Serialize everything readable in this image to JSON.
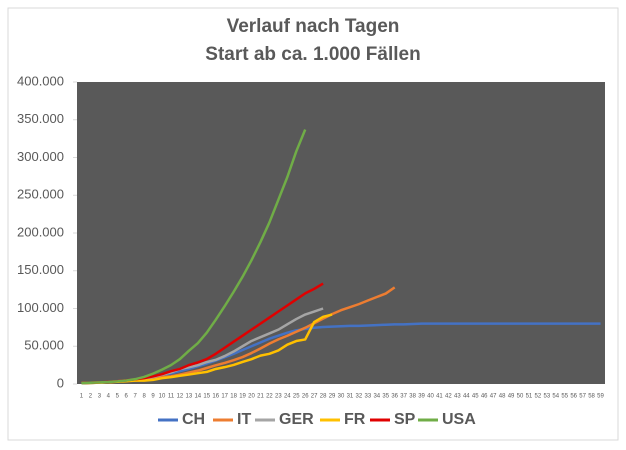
{
  "chart_data": {
    "type": "line",
    "title": "Verlauf nach Tagen",
    "subtitle": "Start ab ca. 1.000 Fällen",
    "categories": [
      1,
      2,
      3,
      4,
      5,
      6,
      7,
      8,
      9,
      10,
      11,
      12,
      13,
      14,
      15,
      16,
      17,
      18,
      19,
      20,
      21,
      22,
      23,
      24,
      25,
      26,
      27,
      28,
      29,
      30,
      31,
      32,
      33,
      34,
      35,
      36,
      37,
      38,
      39,
      40,
      41,
      42,
      43,
      44,
      45,
      46,
      47,
      48,
      49,
      50,
      51,
      52,
      53,
      54,
      55,
      56,
      57,
      58,
      59
    ],
    "ylim": [
      0,
      400000
    ],
    "yticks": [
      0,
      {
        "value": 50000,
        "label": "50.000"
      },
      {
        "value": 100000,
        "label": "100.000"
      },
      {
        "value": 150000,
        "label": "150.000"
      },
      {
        "value": 200000,
        "label": "200.000"
      },
      {
        "value": 250000,
        "label": "250.000"
      },
      {
        "value": 300000,
        "label": "300.000"
      },
      {
        "value": 350000,
        "label": "350.000"
      },
      {
        "value": 400000,
        "label": "400.000"
      }
    ],
    "grid": false,
    "legend": "bottom",
    "background": "#595959",
    "series": [
      {
        "name": "CH",
        "color": "#4472c4",
        "values": [
          1000,
          1400,
          2000,
          2700,
          3500,
          4500,
          5800,
          7200,
          9000,
          11500,
          14000,
          17000,
          20000,
          23500,
          27000,
          31000,
          35500,
          40000,
          45000,
          50000,
          55000,
          60000,
          64000,
          68000,
          71000,
          73000,
          74500,
          75500,
          76000,
          76500,
          77000,
          77000,
          77500,
          78000,
          78500,
          79000,
          79000,
          79500,
          80000,
          80000,
          80000,
          80000,
          80000,
          80000,
          80000,
          80000,
          80000,
          80000,
          80000,
          80000,
          80000,
          80000,
          80000,
          80000,
          80000,
          80000,
          80000,
          80000,
          80000
        ]
      },
      {
        "name": "IT",
        "color": "#ed7d31",
        "values": [
          1100,
          1700,
          2000,
          2500,
          3100,
          3900,
          4600,
          5900,
          7400,
          9200,
          10100,
          12500,
          15100,
          17700,
          21200,
          24700,
          27900,
          31500,
          35700,
          41000,
          47000,
          53500,
          59100,
          63900,
          69200,
          74400,
          80500,
          86500,
          92500,
          97700,
          101700,
          105800,
          110600,
          115200,
          119800,
          128000,
          null,
          null,
          null,
          null,
          null,
          null,
          null,
          null,
          null,
          null,
          null,
          null,
          null,
          null,
          null,
          null,
          null,
          null,
          null,
          null,
          null,
          null,
          null
        ]
      },
      {
        "name": "GER",
        "color": "#a5a5a5",
        "values": [
          1000,
          1300,
          1800,
          2500,
          3700,
          4600,
          5800,
          7200,
          9300,
          12300,
          15300,
          19800,
          22200,
          24900,
          29000,
          32000,
          37000,
          43000,
          50000,
          57000,
          62000,
          67000,
          72000,
          79000,
          86000,
          92000,
          96000,
          100000,
          null,
          null,
          null,
          null,
          null,
          null,
          null,
          null,
          null,
          null,
          null,
          null,
          null,
          null,
          null,
          null,
          null,
          null,
          null,
          null,
          null,
          null,
          null,
          null,
          null,
          null,
          null,
          null,
          null,
          null,
          null
        ]
      },
      {
        "name": "FR",
        "color": "#ffc000",
        "values": [
          1100,
          1400,
          1800,
          2300,
          2900,
          3700,
          4500,
          4500,
          5400,
          7700,
          9100,
          10900,
          12500,
          14300,
          16000,
          19900,
          22300,
          25200,
          29200,
          32900,
          37600,
          40000,
          44500,
          52100,
          56900,
          59000,
          82000,
          89000,
          92000,
          null,
          null,
          null,
          null,
          null,
          null,
          null,
          null,
          null,
          null,
          null,
          null,
          null,
          null,
          null,
          null,
          null,
          null,
          null,
          null,
          null,
          null,
          null,
          null,
          null,
          null,
          null,
          null,
          null,
          null
        ]
      },
      {
        "name": "SP",
        "color": "#e00000",
        "values": [
          1000,
          1600,
          2100,
          2800,
          3600,
          4800,
          6200,
          7800,
          10000,
          13000,
          17000,
          20000,
          25000,
          28500,
          33000,
          40000,
          48000,
          56000,
          64000,
          72000,
          80000,
          88000,
          96000,
          104000,
          112000,
          120000,
          126000,
          133000,
          null,
          null,
          null,
          null,
          null,
          null,
          null,
          null,
          null,
          null,
          null,
          null,
          null,
          null,
          null,
          null,
          null,
          null,
          null,
          null,
          null,
          null,
          null,
          null,
          null,
          null,
          null,
          null,
          null,
          null,
          null
        ]
      },
      {
        "name": "USA",
        "color": "#70ad47",
        "values": [
          1000,
          1600,
          2200,
          2700,
          3500,
          4600,
          6400,
          9400,
          13700,
          19000,
          25000,
          33000,
          44000,
          54000,
          68000,
          85000,
          103000,
          122000,
          142000,
          164000,
          188000,
          214000,
          244000,
          274000,
          308000,
          337000,
          null,
          null,
          null,
          null,
          null,
          null,
          null,
          null,
          null,
          null,
          null,
          null,
          null,
          null,
          null,
          null,
          null,
          null,
          null,
          null,
          null,
          null,
          null,
          null,
          null,
          null,
          null,
          null,
          null,
          null,
          null,
          null,
          null
        ]
      }
    ]
  }
}
